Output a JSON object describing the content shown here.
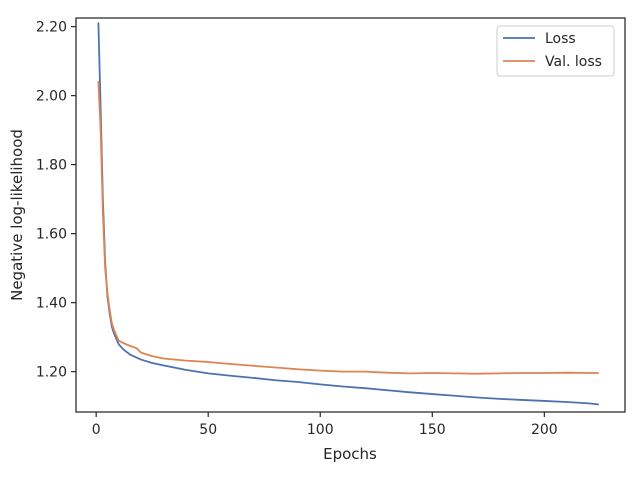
{
  "chart_data": {
    "type": "line",
    "xlabel": "Epochs",
    "ylabel": "Negative log-likelihood",
    "xlim": [
      -9,
      236
    ],
    "ylim": [
      1.083,
      2.225
    ],
    "xticks": [
      0,
      50,
      100,
      150,
      200
    ],
    "xtick_labels": [
      "0",
      "50",
      "100",
      "150",
      "200"
    ],
    "yticks": [
      1.2,
      1.4,
      1.6,
      1.8,
      2.0,
      2.2
    ],
    "ytick_labels": [
      "1.20",
      "1.40",
      "1.60",
      "1.80",
      "2.00",
      "2.20"
    ],
    "grid": false,
    "legend_position": "top-right",
    "series": [
      {
        "name": "Loss",
        "color": "#4c72b0",
        "points": [
          [
            1,
            2.21
          ],
          [
            2,
            1.96
          ],
          [
            3,
            1.7
          ],
          [
            4,
            1.52
          ],
          [
            5,
            1.42
          ],
          [
            6,
            1.37
          ],
          [
            7,
            1.33
          ],
          [
            8,
            1.31
          ],
          [
            9,
            1.295
          ],
          [
            10,
            1.28
          ],
          [
            12,
            1.265
          ],
          [
            15,
            1.25
          ],
          [
            20,
            1.235
          ],
          [
            25,
            1.225
          ],
          [
            30,
            1.218
          ],
          [
            40,
            1.205
          ],
          [
            50,
            1.195
          ],
          [
            60,
            1.188
          ],
          [
            70,
            1.182
          ],
          [
            80,
            1.175
          ],
          [
            90,
            1.17
          ],
          [
            100,
            1.163
          ],
          [
            110,
            1.157
          ],
          [
            120,
            1.152
          ],
          [
            130,
            1.146
          ],
          [
            140,
            1.14
          ],
          [
            150,
            1.135
          ],
          [
            160,
            1.13
          ],
          [
            170,
            1.125
          ],
          [
            180,
            1.121
          ],
          [
            190,
            1.118
          ],
          [
            200,
            1.115
          ],
          [
            210,
            1.112
          ],
          [
            220,
            1.108
          ],
          [
            224,
            1.105
          ]
        ]
      },
      {
        "name": "Val. loss",
        "color": "#dd8452",
        "points": [
          [
            1,
            2.04
          ],
          [
            2,
            1.9
          ],
          [
            3,
            1.66
          ],
          [
            4,
            1.5
          ],
          [
            5,
            1.43
          ],
          [
            6,
            1.38
          ],
          [
            7,
            1.34
          ],
          [
            8,
            1.32
          ],
          [
            9,
            1.305
          ],
          [
            10,
            1.29
          ],
          [
            12,
            1.283
          ],
          [
            15,
            1.275
          ],
          [
            18,
            1.268
          ],
          [
            20,
            1.255
          ],
          [
            25,
            1.245
          ],
          [
            30,
            1.238
          ],
          [
            40,
            1.232
          ],
          [
            50,
            1.228
          ],
          [
            60,
            1.222
          ],
          [
            70,
            1.217
          ],
          [
            80,
            1.212
          ],
          [
            90,
            1.207
          ],
          [
            100,
            1.203
          ],
          [
            110,
            1.2
          ],
          [
            120,
            1.2
          ],
          [
            130,
            1.197
          ],
          [
            140,
            1.195
          ],
          [
            150,
            1.196
          ],
          [
            160,
            1.195
          ],
          [
            170,
            1.194
          ],
          [
            180,
            1.195
          ],
          [
            190,
            1.196
          ],
          [
            200,
            1.196
          ],
          [
            210,
            1.197
          ],
          [
            220,
            1.196
          ],
          [
            224,
            1.196
          ]
        ]
      }
    ]
  }
}
